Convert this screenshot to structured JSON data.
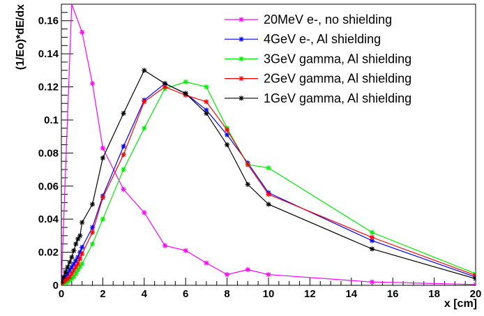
{
  "chart_data": {
    "type": "line",
    "title": "",
    "xlabel": "x [cm]",
    "ylabel": "(1/Eo)*dE/dx",
    "xlim": [
      0,
      20
    ],
    "ylim": [
      0,
      0.17
    ],
    "xticks": [
      0,
      2,
      4,
      6,
      8,
      10,
      12,
      14,
      16,
      18,
      20
    ],
    "xtick_labels": [
      "0",
      "2",
      "4",
      "6",
      "8",
      "10",
      "12",
      "14",
      "16",
      "18",
      "20"
    ],
    "yticks": [
      0,
      0.02,
      0.04,
      0.06,
      0.08,
      0.1,
      0.12,
      0.14,
      0.16
    ],
    "ytick_labels": [
      "0",
      "0.02",
      "0.04",
      "0.06",
      "0.08",
      "0.1",
      "0.12",
      "0.14",
      "0.16"
    ],
    "grid": false,
    "legend_position": "top-right",
    "marker": "asterisk",
    "series": [
      {
        "name": "20MeV e-, no shielding",
        "color": "#ff00ff",
        "x": [
          0,
          1,
          1.5,
          2,
          3,
          4,
          5,
          6,
          7,
          8,
          9,
          10,
          15,
          20
        ],
        "y": [
          0.001,
          0.153,
          0.122,
          0.083,
          0.058,
          0.044,
          0.024,
          0.021,
          0.0135,
          0.0065,
          0.0095,
          0.0065,
          0.002,
          0.0005
        ],
        "clip_to": [
          0.5,
          0.17
        ]
      },
      {
        "name": "4GeV e-, Al shielding",
        "color": "#0000ff",
        "x": [
          0,
          0.1,
          0.2,
          0.3,
          0.4,
          0.5,
          0.6,
          0.7,
          0.8,
          0.9,
          1,
          1.5,
          2,
          3,
          4,
          5,
          6,
          7,
          8,
          9,
          10,
          15,
          20
        ],
        "y": [
          0.001,
          0.003,
          0.005,
          0.007,
          0.009,
          0.011,
          0.013,
          0.015,
          0.017,
          0.02,
          0.023,
          0.035,
          0.054,
          0.084,
          0.112,
          0.122,
          0.116,
          0.106,
          0.091,
          0.074,
          0.056,
          0.027,
          0.005
        ]
      },
      {
        "name": "3GeV gamma, Al shielding",
        "color": "#00ee00",
        "x": [
          0,
          0.1,
          0.2,
          0.3,
          0.4,
          0.5,
          0.6,
          0.7,
          0.8,
          0.9,
          1,
          1.5,
          2,
          3,
          4,
          5,
          6,
          7,
          8,
          9,
          10,
          15,
          20
        ],
        "y": [
          0.0005,
          0.001,
          0.0015,
          0.002,
          0.003,
          0.004,
          0.005,
          0.007,
          0.009,
          0.011,
          0.013,
          0.025,
          0.04,
          0.07,
          0.095,
          0.119,
          0.123,
          0.12,
          0.095,
          0.073,
          0.071,
          0.032,
          0.007
        ]
      },
      {
        "name": "2GeV gamma, Al shielding",
        "color": "#ff0000",
        "x": [
          0,
          0.1,
          0.2,
          0.3,
          0.4,
          0.5,
          0.6,
          0.7,
          0.8,
          0.9,
          1,
          1.5,
          2,
          3,
          4,
          5,
          6,
          7,
          8,
          9,
          10,
          15,
          20
        ],
        "y": [
          0.001,
          0.002,
          0.003,
          0.004,
          0.005,
          0.007,
          0.009,
          0.011,
          0.013,
          0.016,
          0.019,
          0.032,
          0.053,
          0.079,
          0.111,
          0.12,
          0.115,
          0.111,
          0.094,
          0.073,
          0.055,
          0.029,
          0.006
        ]
      },
      {
        "name": "1GeV gamma, Al shielding",
        "color": "#000000",
        "x": [
          0,
          0.1,
          0.2,
          0.3,
          0.4,
          0.5,
          0.6,
          0.7,
          0.8,
          0.9,
          1,
          1.5,
          2,
          3,
          4,
          5,
          6,
          7,
          8,
          9,
          10,
          15,
          20
        ],
        "y": [
          0.002,
          0.005,
          0.008,
          0.011,
          0.014,
          0.017,
          0.021,
          0.025,
          0.028,
          0.03,
          0.038,
          0.049,
          0.077,
          0.104,
          0.13,
          0.122,
          0.116,
          0.104,
          0.085,
          0.061,
          0.049,
          0.022,
          0.004
        ]
      }
    ]
  }
}
